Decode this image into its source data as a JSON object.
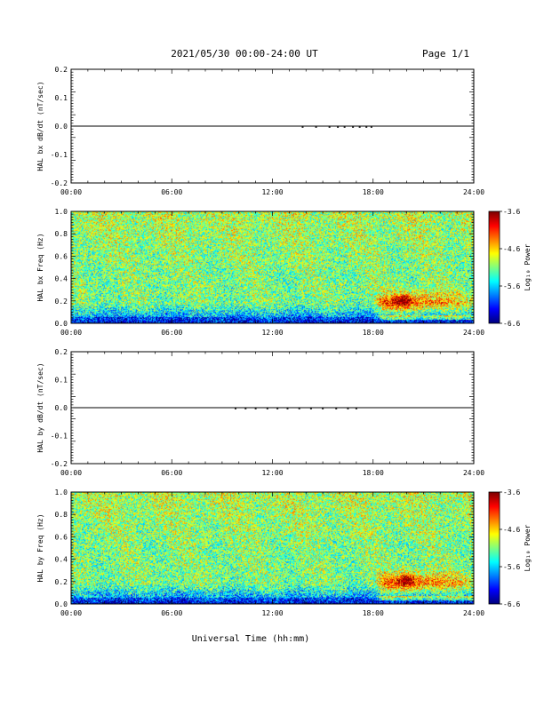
{
  "header": {
    "title": "2021/05/30  00:00-24:00 UT",
    "page": "Page 1/1"
  },
  "x_axis": {
    "label": "Universal Time (hh:mm)",
    "ticks": [
      "00:00",
      "06:00",
      "12:00",
      "18:00",
      "24:00"
    ]
  },
  "chart_data": [
    {
      "type": "line",
      "ylabel": "HAL bx dB/dt (nT/sec)",
      "xlim": [
        0,
        24
      ],
      "ylim": [
        -0.2,
        0.2
      ],
      "yticks": [
        0.2,
        0.1,
        0.0,
        -0.1,
        -0.2
      ],
      "ytick_labels": [
        "0.2",
        "0.1",
        "0.0",
        "-0.1",
        "-0.2"
      ],
      "series": [
        {
          "x": [
            0,
            24
          ],
          "y": [
            0,
            0
          ]
        }
      ],
      "dots": [
        13.8,
        14.6,
        15.4,
        15.9,
        16.3,
        16.8,
        17.2,
        17.6,
        17.9
      ]
    },
    {
      "type": "heatmap",
      "ylabel": "HAL bx Freq (Hz)",
      "xlim": [
        0,
        24
      ],
      "ylim": [
        0,
        1.0
      ],
      "yticks": [
        1.0,
        0.8,
        0.6,
        0.4,
        0.2,
        0.0
      ],
      "ytick_labels": [
        "1.0",
        "0.8",
        "0.6",
        "0.4",
        "0.2",
        "0.0"
      ],
      "colorbar": {
        "label": "Log₁₀ Power",
        "range": [
          -6.6,
          -3.6
        ],
        "ticks": [
          "-3.6",
          "-4.6",
          "-5.6",
          "-6.6"
        ]
      },
      "event": {
        "t_start": 18.0,
        "t_peak": 19.8,
        "f_peak": 0.2,
        "seed": 11
      }
    },
    {
      "type": "line",
      "ylabel": "HAL by dB/dt (nT/sec)",
      "xlim": [
        0,
        24
      ],
      "ylim": [
        -0.2,
        0.2
      ],
      "yticks": [
        0.2,
        0.1,
        0.0,
        -0.1,
        -0.2
      ],
      "ytick_labels": [
        "0.2",
        "0.1",
        "0.0",
        "-0.1",
        "-0.2"
      ],
      "series": [
        {
          "x": [
            0,
            24
          ],
          "y": [
            0,
            0
          ]
        }
      ],
      "dots": [
        9.8,
        10.4,
        11.0,
        11.7,
        12.3,
        12.9,
        13.6,
        14.3,
        15.0,
        15.8,
        16.5,
        17.0
      ]
    },
    {
      "type": "heatmap",
      "ylabel": "HAL by Freq (Hz)",
      "xlim": [
        0,
        24
      ],
      "ylim": [
        0,
        1.0
      ],
      "yticks": [
        1.0,
        0.8,
        0.6,
        0.4,
        0.2,
        0.0
      ],
      "ytick_labels": [
        "1.0",
        "0.8",
        "0.6",
        "0.4",
        "0.2",
        "0.0"
      ],
      "colorbar": {
        "label": "Log₁₀ Power",
        "range": [
          -6.6,
          -3.6
        ],
        "ticks": [
          "-3.6",
          "-4.6",
          "-5.6",
          "-6.6"
        ]
      },
      "event": {
        "t_start": 18.0,
        "t_peak": 20.0,
        "f_peak": 0.22,
        "seed": 29
      }
    }
  ]
}
